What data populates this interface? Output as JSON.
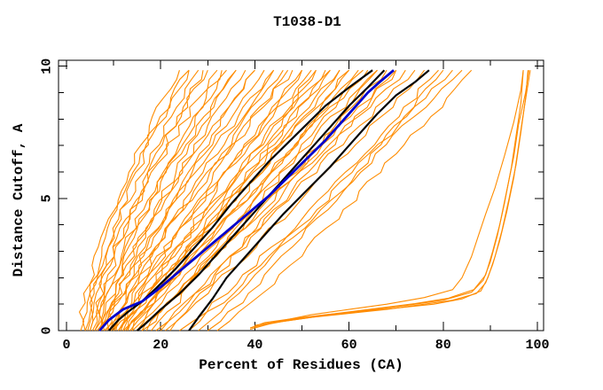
{
  "chart_data": {
    "type": "line",
    "title": "T1038-D1",
    "xlabel": "Percent of Residues (CA)",
    "ylabel": "Distance Cutoff, A",
    "xlim": [
      0,
      100
    ],
    "ylim": [
      0,
      10
    ],
    "x_major_ticks": [
      0,
      20,
      40,
      60,
      80,
      100
    ],
    "x_minor_tick_step": 10,
    "y_major_ticks": [
      0,
      5,
      10
    ],
    "y_minor_tick_step": 1,
    "grid": false,
    "legend": false,
    "colors": {
      "model_bundle": "#ff8c00",
      "highlighted_models": "#000000",
      "selected_model": "#0000cd"
    },
    "series": {
      "model_bundle": {
        "format": "each curve = [percent_at_cutoff_0, percent_at_cutoff_10, shape_exponent]",
        "curves": [
          [
            3,
            26,
            1.5
          ],
          [
            4,
            24,
            1.5
          ],
          [
            4,
            28,
            1.4
          ],
          [
            4.5,
            32,
            1.35
          ],
          [
            5,
            26,
            1.5
          ],
          [
            5,
            36,
            1.25
          ],
          [
            5.5,
            30,
            1.4
          ],
          [
            6,
            40,
            1.2
          ],
          [
            6,
            34,
            1.3
          ],
          [
            6.5,
            44,
            1.15
          ],
          [
            7,
            29,
            1.45
          ],
          [
            7,
            48,
            1.1
          ],
          [
            7.5,
            38,
            1.25
          ],
          [
            8,
            52,
            1.05
          ],
          [
            8,
            33,
            1.35
          ],
          [
            8.5,
            42,
            1.2
          ],
          [
            9,
            55,
            1.0
          ],
          [
            9,
            36,
            1.3
          ],
          [
            9.5,
            46,
            1.15
          ],
          [
            10,
            58,
            0.95
          ],
          [
            10,
            40,
            1.25
          ],
          [
            10.5,
            50,
            1.1
          ],
          [
            11,
            60,
            1.0
          ],
          [
            11,
            44,
            1.2
          ],
          [
            11.5,
            53,
            1.05
          ],
          [
            12,
            62,
            0.95
          ],
          [
            12,
            47,
            1.15
          ],
          [
            12.5,
            56,
            1.0
          ],
          [
            13,
            64,
            1.05
          ],
          [
            13,
            50,
            1.1
          ],
          [
            13.5,
            58,
            0.95
          ],
          [
            14,
            66,
            1.0
          ],
          [
            14,
            53,
            1.05
          ],
          [
            15,
            68,
            0.95
          ],
          [
            15,
            56,
            1.1
          ],
          [
            16,
            70,
            1.0
          ],
          [
            16,
            60,
            0.9
          ],
          [
            17,
            72,
            1.05
          ],
          [
            18,
            63,
            0.95
          ],
          [
            19,
            74,
            1.0
          ],
          [
            20,
            66,
            0.9
          ],
          [
            21,
            76,
            0.95
          ],
          [
            22,
            70,
            1.0
          ],
          [
            24,
            79,
            0.9
          ],
          [
            26,
            82,
            0.95
          ],
          [
            28,
            84,
            1.0
          ],
          [
            30,
            80,
            0.9
          ],
          [
            32,
            86,
            0.9
          ]
        ]
      },
      "poor_model_outliers": {
        "format": "explicit [percent, cutoff] points",
        "curves_points": [
          [
            [
              39,
              0.05
            ],
            [
              44,
              0.3
            ],
            [
              52,
              0.5
            ],
            [
              60,
              0.65
            ],
            [
              68,
              0.8
            ],
            [
              76,
              1.0
            ],
            [
              82,
              1.15
            ],
            [
              87,
              1.4
            ],
            [
              89,
              1.8
            ],
            [
              90.5,
              2.5
            ],
            [
              92,
              3.4
            ],
            [
              93.5,
              4.5
            ],
            [
              95,
              5.8
            ],
            [
              96,
              7.0
            ],
            [
              97,
              8.2
            ],
            [
              98.5,
              9.85
            ]
          ],
          [
            [
              39,
              0.1
            ],
            [
              42,
              0.3
            ],
            [
              48,
              0.45
            ],
            [
              55,
              0.6
            ],
            [
              62,
              0.72
            ],
            [
              70,
              0.85
            ],
            [
              78,
              1.0
            ],
            [
              84,
              1.2
            ],
            [
              88,
              1.5
            ],
            [
              89.5,
              2.0
            ],
            [
              91,
              2.8
            ],
            [
              92.5,
              3.8
            ],
            [
              94,
              5.0
            ],
            [
              95.5,
              6.3
            ],
            [
              96.5,
              7.5
            ],
            [
              97.5,
              8.8
            ],
            [
              98,
              9.85
            ]
          ],
          [
            [
              40,
              0.15
            ],
            [
              46,
              0.35
            ],
            [
              54,
              0.55
            ],
            [
              63,
              0.75
            ],
            [
              72,
              0.95
            ],
            [
              80,
              1.15
            ],
            [
              86,
              1.45
            ],
            [
              88.5,
              1.9
            ],
            [
              90,
              2.6
            ],
            [
              91.5,
              3.6
            ],
            [
              93,
              4.8
            ],
            [
              94.5,
              6.2
            ],
            [
              95.5,
              7.4
            ],
            [
              96.5,
              8.6
            ],
            [
              97,
              9.85
            ]
          ],
          [
            [
              39,
              0.1
            ],
            [
              45,
              0.35
            ],
            [
              52,
              0.6
            ],
            [
              60,
              0.8
            ],
            [
              68,
              1.0
            ],
            [
              76,
              1.25
            ],
            [
              82,
              1.55
            ],
            [
              84,
              2.0
            ],
            [
              86,
              2.8
            ],
            [
              87.5,
              3.6
            ],
            [
              89,
              4.4
            ],
            [
              91,
              5.4
            ],
            [
              93,
              6.6
            ],
            [
              95,
              7.9
            ],
            [
              96.5,
              9.1
            ],
            [
              97,
              9.85
            ]
          ],
          [
            [
              40,
              0.2
            ],
            [
              47,
              0.4
            ],
            [
              56,
              0.62
            ],
            [
              65,
              0.82
            ],
            [
              74,
              1.02
            ],
            [
              81,
              1.22
            ],
            [
              86.5,
              1.55
            ],
            [
              89,
              2.1
            ],
            [
              90.5,
              3.0
            ],
            [
              92,
              4.0
            ],
            [
              93.5,
              5.3
            ],
            [
              95,
              6.6
            ],
            [
              96,
              7.8
            ],
            [
              97.5,
              9.0
            ],
            [
              98.2,
              9.85
            ]
          ]
        ]
      },
      "highlighted_models": {
        "format": "explicit [percent, cutoff] points",
        "curves_points": [
          [
            [
              9,
              0
            ],
            [
              11,
              0.4
            ],
            [
              13,
              0.7
            ],
            [
              16,
              1.1
            ],
            [
              19,
              1.6
            ],
            [
              23,
              2.3
            ],
            [
              27,
              3.1
            ],
            [
              31,
              3.9
            ],
            [
              35,
              4.8
            ],
            [
              39,
              5.6
            ],
            [
              43,
              6.4
            ],
            [
              47,
              7.1
            ],
            [
              51,
              7.8
            ],
            [
              55,
              8.5
            ],
            [
              60,
              9.2
            ],
            [
              65,
              9.85
            ]
          ],
          [
            [
              15,
              0
            ],
            [
              17,
              0.3
            ],
            [
              20,
              0.8
            ],
            [
              24,
              1.4
            ],
            [
              28,
              2.1
            ],
            [
              32,
              2.9
            ],
            [
              36,
              3.7
            ],
            [
              40,
              4.5
            ],
            [
              44,
              5.3
            ],
            [
              48,
              6.1
            ],
            [
              52,
              6.9
            ],
            [
              56,
              7.7
            ],
            [
              60,
              8.5
            ],
            [
              64,
              9.2
            ],
            [
              67.5,
              9.85
            ]
          ],
          [
            [
              26,
              0
            ],
            [
              28,
              0.5
            ],
            [
              31,
              1.2
            ],
            [
              34,
              2.0
            ],
            [
              38,
              2.8
            ],
            [
              42,
              3.6
            ],
            [
              46,
              4.4
            ],
            [
              51,
              5.3
            ],
            [
              56,
              6.2
            ],
            [
              61,
              7.2
            ],
            [
              66,
              8.2
            ],
            [
              70,
              8.9
            ],
            [
              74,
              9.4
            ],
            [
              77,
              9.85
            ]
          ]
        ]
      },
      "selected_model": {
        "points": [
          [
            7,
            0
          ],
          [
            9,
            0.4
          ],
          [
            12,
            0.8
          ],
          [
            16,
            1.1
          ],
          [
            19,
            1.5
          ],
          [
            23,
            2.1
          ],
          [
            27,
            2.7
          ],
          [
            31,
            3.3
          ],
          [
            35,
            3.9
          ],
          [
            39,
            4.5
          ],
          [
            43,
            5.1
          ],
          [
            47,
            5.8
          ],
          [
            51,
            6.5
          ],
          [
            55,
            7.2
          ],
          [
            58,
            7.8
          ],
          [
            61,
            8.4
          ],
          [
            64,
            9.0
          ],
          [
            66.5,
            9.4
          ],
          [
            69.5,
            9.85
          ]
        ]
      }
    }
  }
}
